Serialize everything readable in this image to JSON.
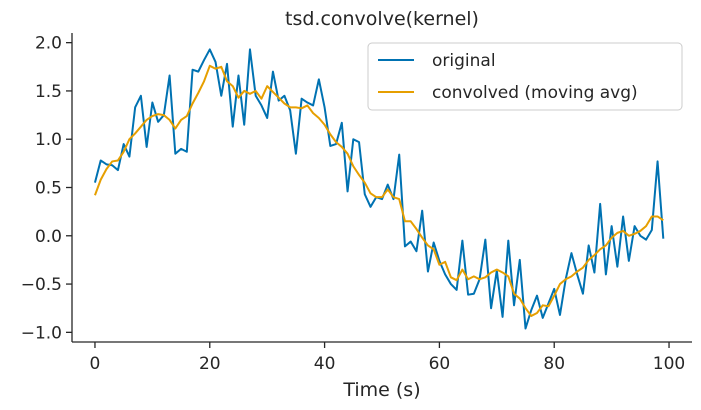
{
  "chart_data": {
    "type": "line",
    "title": "tsd.convolve(kernel)",
    "xlabel": "Time (s)",
    "ylabel": "",
    "xlim": [
      -4,
      104
    ],
    "ylim": [
      -1.1,
      2.1
    ],
    "xticks": [
      0,
      20,
      40,
      60,
      80,
      100
    ],
    "xtick_labels": [
      "0",
      "20",
      "40",
      "60",
      "80",
      "100"
    ],
    "yticks": [
      -1.0,
      -0.5,
      0.0,
      0.5,
      1.0,
      1.5,
      2.0
    ],
    "ytick_labels": [
      "−1.0",
      "−0.5",
      "0.0",
      "0.5",
      "1.0",
      "1.5",
      "2.0"
    ],
    "grid": false,
    "legend": {
      "position": "top-right"
    },
    "x": [
      0,
      1,
      2,
      3,
      4,
      5,
      6,
      7,
      8,
      9,
      10,
      11,
      12,
      13,
      14,
      15,
      16,
      17,
      18,
      19,
      20,
      21,
      22,
      23,
      24,
      25,
      26,
      27,
      28,
      29,
      30,
      31,
      32,
      33,
      34,
      35,
      36,
      37,
      38,
      39,
      40,
      41,
      42,
      43,
      44,
      45,
      46,
      47,
      48,
      49,
      50,
      51,
      52,
      53,
      54,
      55,
      56,
      57,
      58,
      59,
      60,
      61,
      62,
      63,
      64,
      65,
      66,
      67,
      68,
      69,
      70,
      71,
      72,
      73,
      74,
      75,
      76,
      77,
      78,
      79,
      80,
      81,
      82,
      83,
      84,
      85,
      86,
      87,
      88,
      89,
      90,
      91,
      92,
      93,
      94,
      95,
      96,
      97,
      98,
      99
    ],
    "series": [
      {
        "name": "original",
        "color": "#0072b2",
        "values": [
          0.55,
          0.78,
          0.74,
          0.73,
          0.68,
          0.95,
          0.82,
          1.33,
          1.45,
          0.92,
          1.38,
          1.18,
          1.25,
          1.66,
          0.85,
          0.9,
          0.87,
          1.72,
          1.7,
          1.82,
          1.93,
          1.8,
          1.45,
          1.78,
          1.13,
          1.66,
          1.15,
          1.93,
          1.45,
          1.35,
          1.22,
          1.7,
          1.4,
          1.45,
          1.3,
          0.85,
          1.42,
          1.38,
          1.35,
          1.62,
          1.33,
          0.93,
          0.95,
          1.17,
          0.46,
          1.0,
          0.97,
          0.43,
          0.3,
          0.4,
          0.38,
          0.53,
          0.38,
          0.84,
          -0.11,
          -0.06,
          -0.16,
          0.26,
          -0.37,
          -0.07,
          -0.26,
          -0.4,
          -0.5,
          -0.56,
          -0.05,
          -0.61,
          -0.6,
          -0.45,
          -0.04,
          -0.75,
          -0.36,
          -0.84,
          -0.05,
          -0.72,
          -0.25,
          -0.96,
          -0.77,
          -0.62,
          -0.85,
          -0.7,
          -0.55,
          -0.82,
          -0.45,
          -0.18,
          -0.4,
          -0.6,
          -0.1,
          -0.38,
          0.33,
          -0.4,
          0.1,
          -0.32,
          0.2,
          -0.26,
          0.1,
          0.0,
          -0.04,
          0.06,
          0.77,
          -0.03
        ]
      },
      {
        "name": "convolved (moving avg)",
        "color": "#e69f00",
        "values": [
          0.42,
          0.58,
          0.69,
          0.77,
          0.78,
          0.87,
          1.0,
          1.06,
          1.13,
          1.2,
          1.24,
          1.26,
          1.25,
          1.2,
          1.11,
          1.2,
          1.24,
          1.37,
          1.48,
          1.6,
          1.76,
          1.73,
          1.75,
          1.6,
          1.55,
          1.43,
          1.5,
          1.47,
          1.5,
          1.42,
          1.55,
          1.49,
          1.43,
          1.37,
          1.33,
          1.33,
          1.32,
          1.35,
          1.27,
          1.22,
          1.15,
          1.05,
          0.97,
          0.92,
          0.85,
          0.72,
          0.63,
          0.55,
          0.44,
          0.4,
          0.4,
          0.48,
          0.4,
          0.38,
          0.15,
          0.15,
          0.07,
          -0.02,
          -0.1,
          -0.14,
          -0.3,
          -0.27,
          -0.43,
          -0.46,
          -0.35,
          -0.45,
          -0.42,
          -0.45,
          -0.43,
          -0.38,
          -0.35,
          -0.38,
          -0.42,
          -0.6,
          -0.65,
          -0.75,
          -0.83,
          -0.8,
          -0.72,
          -0.73,
          -0.62,
          -0.5,
          -0.45,
          -0.42,
          -0.37,
          -0.33,
          -0.25,
          -0.2,
          -0.14,
          -0.1,
          -0.02,
          0.03,
          0.05,
          0.0,
          0.02,
          0.05,
          0.1,
          0.2,
          0.2,
          0.16
        ]
      }
    ]
  }
}
